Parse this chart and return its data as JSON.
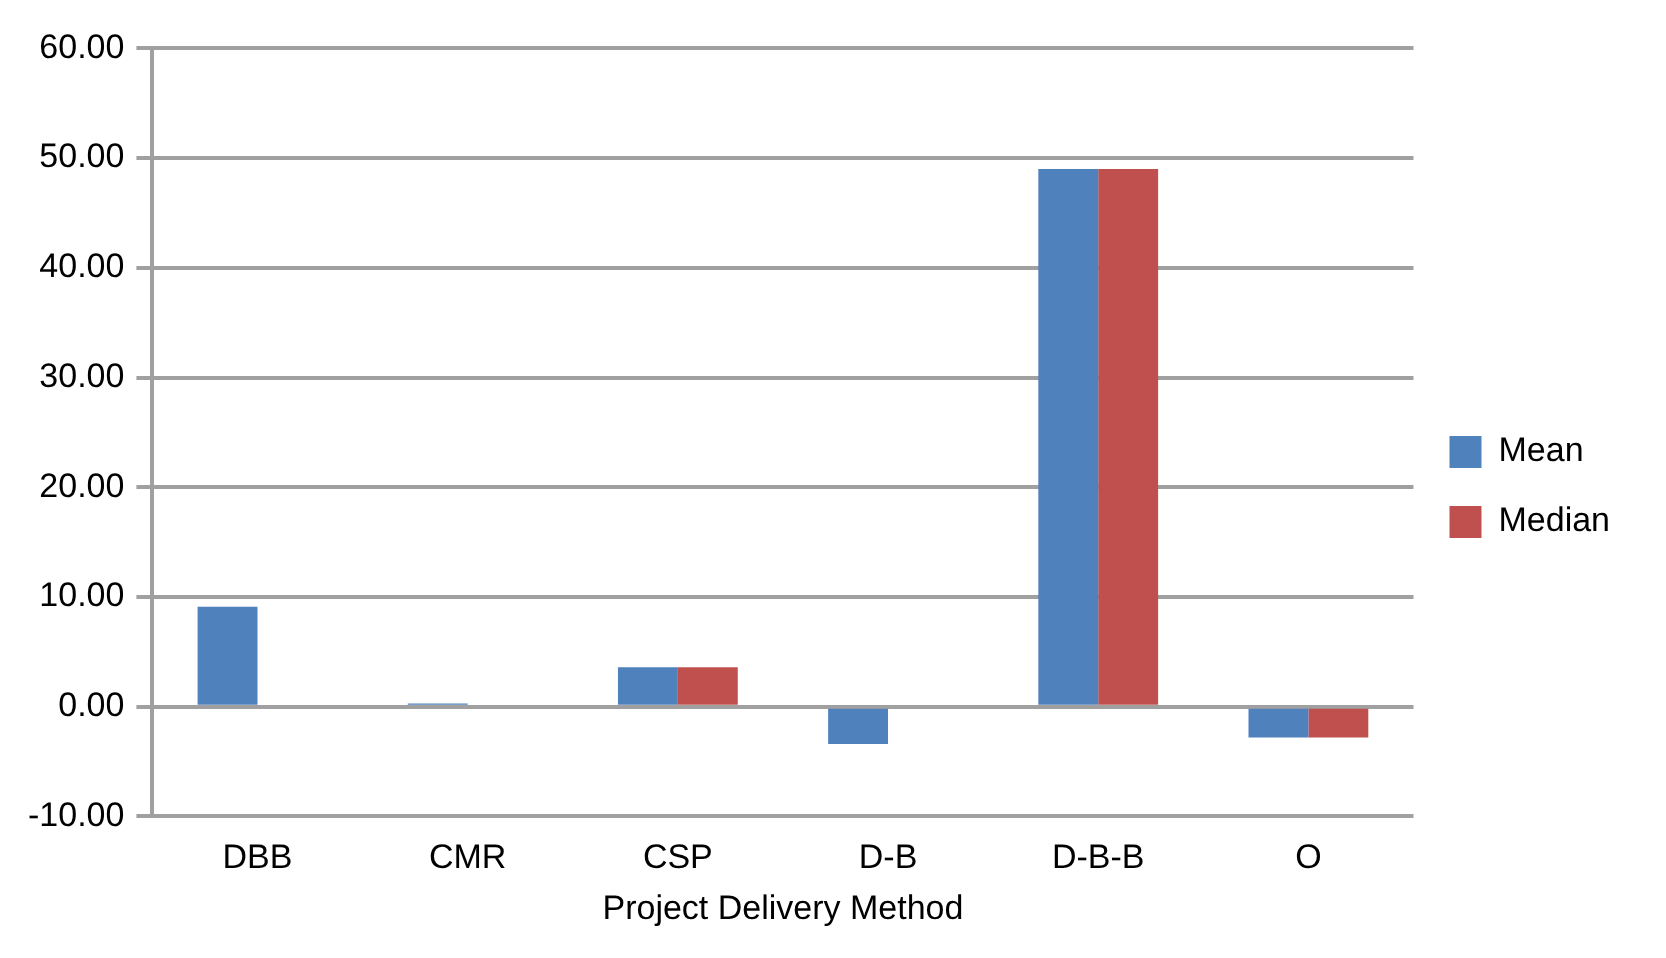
{
  "chart_data": {
    "type": "bar",
    "xlabel": "Project Delivery Method",
    "categories": [
      "DBB",
      "CMR",
      "CSP",
      "D-B",
      "D-B-B",
      "O"
    ],
    "series": [
      {
        "name": "Mean",
        "color": "#4f81bd",
        "values": [
          9.1,
          0.3,
          3.6,
          -3.4,
          49.0,
          -2.8
        ]
      },
      {
        "name": "Median",
        "color": "#c0504d",
        "values": [
          0,
          0,
          3.6,
          0,
          49.0,
          -2.8
        ]
      }
    ],
    "ylim": [
      -10,
      60
    ],
    "yticks": [
      {
        "value": -10,
        "label": "-10.00"
      },
      {
        "value": 0,
        "label": "0.00"
      },
      {
        "value": 10,
        "label": "10.00"
      },
      {
        "value": 20,
        "label": "20.00"
      },
      {
        "value": 30,
        "label": "30.00"
      },
      {
        "value": 40,
        "label": "40.00"
      },
      {
        "value": 50,
        "label": "50.00"
      },
      {
        "value": 60,
        "label": "60.00"
      }
    ],
    "grid": "y",
    "legend": "right"
  }
}
